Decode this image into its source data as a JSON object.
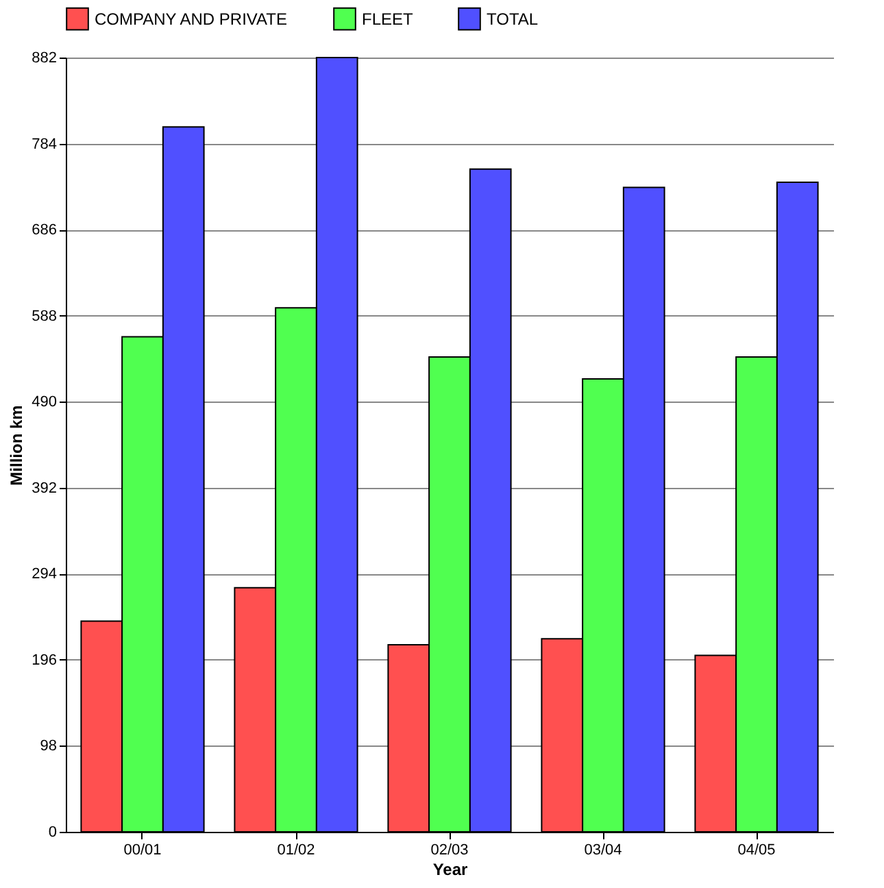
{
  "chart_data": {
    "type": "bar",
    "xlabel": "Year",
    "ylabel": "Million km",
    "categories": [
      "00/01",
      "01/02",
      "02/03",
      "03/04",
      "04/05"
    ],
    "series": [
      {
        "name": "COMPANY AND PRIVATE",
        "color": "#ff5050",
        "values": [
          240,
          278,
          213,
          220,
          201
        ]
      },
      {
        "name": "FLEET",
        "color": "#50ff50",
        "values": [
          564,
          597,
          541,
          516,
          541
        ]
      },
      {
        "name": "TOTAL",
        "color": "#5050ff",
        "values": [
          803,
          882,
          755,
          734,
          740
        ]
      }
    ],
    "ylim": [
      0,
      882
    ],
    "yticks": [
      0,
      98,
      196,
      294,
      392,
      490,
      588,
      686,
      784,
      882
    ],
    "grid": "y",
    "legend": "top"
  }
}
